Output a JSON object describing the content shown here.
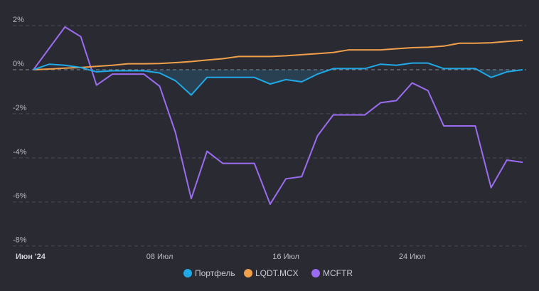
{
  "chart_data": {
    "type": "line",
    "categories": [
      "Июн '24",
      null,
      null,
      null,
      null,
      null,
      null,
      null,
      "08 Июл",
      null,
      null,
      null,
      null,
      null,
      null,
      null,
      "16 Июл",
      null,
      null,
      null,
      null,
      null,
      null,
      null,
      "24 Июл",
      null,
      null,
      null,
      null,
      null,
      null,
      null
    ],
    "series": [
      {
        "name": "Портфель",
        "color": "#1fa9e6",
        "values": [
          0,
          0.25,
          0.2,
          0.1,
          -0.1,
          -0.05,
          -0.05,
          -0.05,
          -0.15,
          -0.5,
          -1.15,
          -0.35,
          -0.35,
          -0.35,
          -0.35,
          -0.65,
          -0.45,
          -0.55,
          -0.2,
          0.05,
          0.05,
          0.05,
          0.25,
          0.2,
          0.3,
          0.3,
          0.05,
          0.05,
          0.05,
          -0.35,
          -0.1,
          0
        ]
      },
      {
        "name": "LQDT.MCX",
        "color": "#f0a04b",
        "values": [
          0,
          0.03,
          0.07,
          0.1,
          0.15,
          0.2,
          0.27,
          0.27,
          0.28,
          0.32,
          0.37,
          0.44,
          0.5,
          0.6,
          0.6,
          0.6,
          0.63,
          0.68,
          0.73,
          0.78,
          0.9,
          0.9,
          0.9,
          0.95,
          1.0,
          1.02,
          1.07,
          1.2,
          1.2,
          1.22,
          1.28,
          1.33
        ]
      },
      {
        "name": "MCFTR",
        "color": "#9b6cf0",
        "values": [
          0,
          0.97,
          1.94,
          1.5,
          -0.7,
          -0.2,
          -0.2,
          -0.2,
          -0.75,
          -2.85,
          -5.85,
          -3.7,
          -4.25,
          -4.25,
          -4.25,
          -6.1,
          -4.95,
          -4.85,
          -3.0,
          -2.05,
          -2.05,
          -2.05,
          -1.5,
          -1.4,
          -0.6,
          -0.95,
          -2.55,
          -2.55,
          -2.55,
          -5.35,
          -4.1,
          -4.2
        ]
      }
    ],
    "ylim": [
      -8.2,
      2.5
    ],
    "yticks": [
      {
        "value": 2,
        "label": "2%"
      },
      {
        "value": 0,
        "label": "0%"
      },
      {
        "value": -2,
        "label": "-2%"
      },
      {
        "value": -4,
        "label": "-4%"
      },
      {
        "value": -6,
        "label": "-6%"
      },
      {
        "value": -8,
        "label": "-8%"
      }
    ],
    "grid": true,
    "legend": "bottom"
  }
}
